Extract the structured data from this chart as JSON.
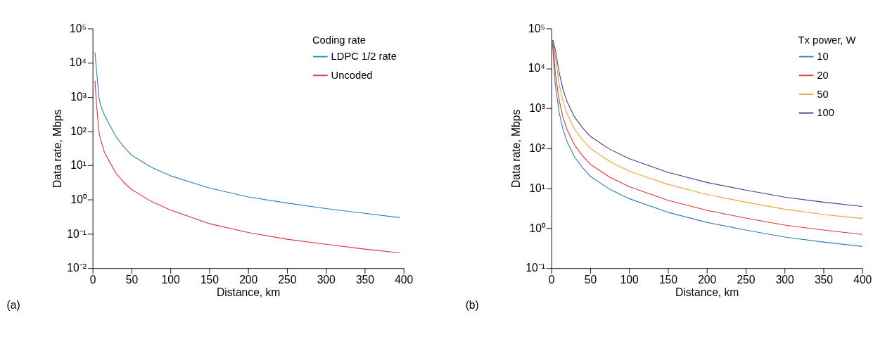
{
  "chart_data": [
    {
      "type": "line",
      "xlabel": "Distance, km",
      "ylabel": "Data rate, Mbps",
      "legend_title": "Coding rate",
      "annotations": [
        "(a)"
      ],
      "log": "y",
      "grid": false,
      "legend": "top right",
      "marker": "none",
      "line_style": "solid",
      "xlim": [
        0,
        400
      ],
      "xticks": [
        0,
        50,
        100,
        150,
        200,
        250,
        300,
        350,
        400
      ],
      "ylim": [
        0.01,
        100000
      ],
      "yticks": [
        {
          "value": 0.01,
          "label": "10⁻²"
        },
        {
          "value": 0.1,
          "label": "10⁻¹"
        },
        {
          "value": 1,
          "label": "10⁰"
        },
        {
          "value": 10,
          "label": "10¹"
        },
        {
          "value": 100,
          "label": "10²"
        },
        {
          "value": 1000,
          "label": "10³"
        },
        {
          "value": 10000,
          "label": "10⁴"
        },
        {
          "value": 100000,
          "label": "10⁵"
        }
      ],
      "x": [
        3,
        5,
        8,
        10,
        15,
        20,
        30,
        40,
        50,
        75,
        100,
        150,
        200,
        250,
        300,
        350,
        395
      ],
      "series": [
        {
          "name": "LDPC 1/2 rate",
          "color": "#2f7fb8",
          "values": [
            20000,
            6000,
            1000,
            600,
            300,
            180,
            70,
            35,
            20,
            9,
            5,
            2.2,
            1.2,
            0.8,
            0.55,
            0.4,
            0.3
          ]
        },
        {
          "name": "Uncoded",
          "color": "#e0353a",
          "values": [
            3000,
            600,
            100,
            60,
            25,
            15,
            6,
            3.2,
            2,
            0.9,
            0.5,
            0.2,
            0.11,
            0.07,
            0.05,
            0.036,
            0.028
          ]
        }
      ]
    },
    {
      "type": "line",
      "xlabel": "Distance, km",
      "ylabel": "Data rate, Mbps",
      "legend_title": "Tx power, W",
      "annotations": [
        "(b)"
      ],
      "log": "y",
      "grid": false,
      "legend": "top right",
      "marker": "none",
      "line_style": "solid",
      "xlim": [
        0,
        400
      ],
      "xticks": [
        0,
        50,
        100,
        150,
        200,
        250,
        300,
        350,
        400
      ],
      "ylim": [
        0.1,
        100000
      ],
      "yticks": [
        {
          "value": 0.1,
          "label": "10⁻¹"
        },
        {
          "value": 1,
          "label": "10⁰"
        },
        {
          "value": 10,
          "label": "10¹"
        },
        {
          "value": 100,
          "label": "10²"
        },
        {
          "value": 1000,
          "label": "10³"
        },
        {
          "value": 10000,
          "label": "10⁴"
        },
        {
          "value": 100000,
          "label": "10⁵"
        }
      ],
      "x": [
        1,
        2,
        5,
        10,
        15,
        20,
        30,
        40,
        50,
        75,
        100,
        150,
        200,
        250,
        300,
        350,
        400
      ],
      "series": [
        {
          "name": "10",
          "color": "#2f7fb8",
          "values": [
            50000,
            30000,
            4000,
            800,
            300,
            150,
            60,
            33,
            20,
            9.5,
            5.5,
            2.5,
            1.4,
            0.9,
            0.6,
            0.45,
            0.35
          ]
        },
        {
          "name": "20",
          "color": "#e0353a",
          "values": [
            50000,
            50000,
            8000,
            1600,
            600,
            300,
            120,
            66,
            40,
            19,
            11,
            5,
            2.8,
            1.8,
            1.2,
            0.9,
            0.7
          ]
        },
        {
          "name": "50",
          "color": "#e8a835",
          "values": [
            50000,
            50000,
            20000,
            4000,
            1500,
            750,
            300,
            165,
            100,
            47,
            27,
            12.5,
            7,
            4.5,
            3,
            2.2,
            1.75
          ]
        },
        {
          "name": "100",
          "color": "#4a3a8c",
          "values": [
            50000,
            50000,
            30000,
            8000,
            3000,
            1500,
            600,
            330,
            200,
            95,
            55,
            25,
            14,
            9,
            6,
            4.5,
            3.5
          ]
        }
      ]
    }
  ]
}
